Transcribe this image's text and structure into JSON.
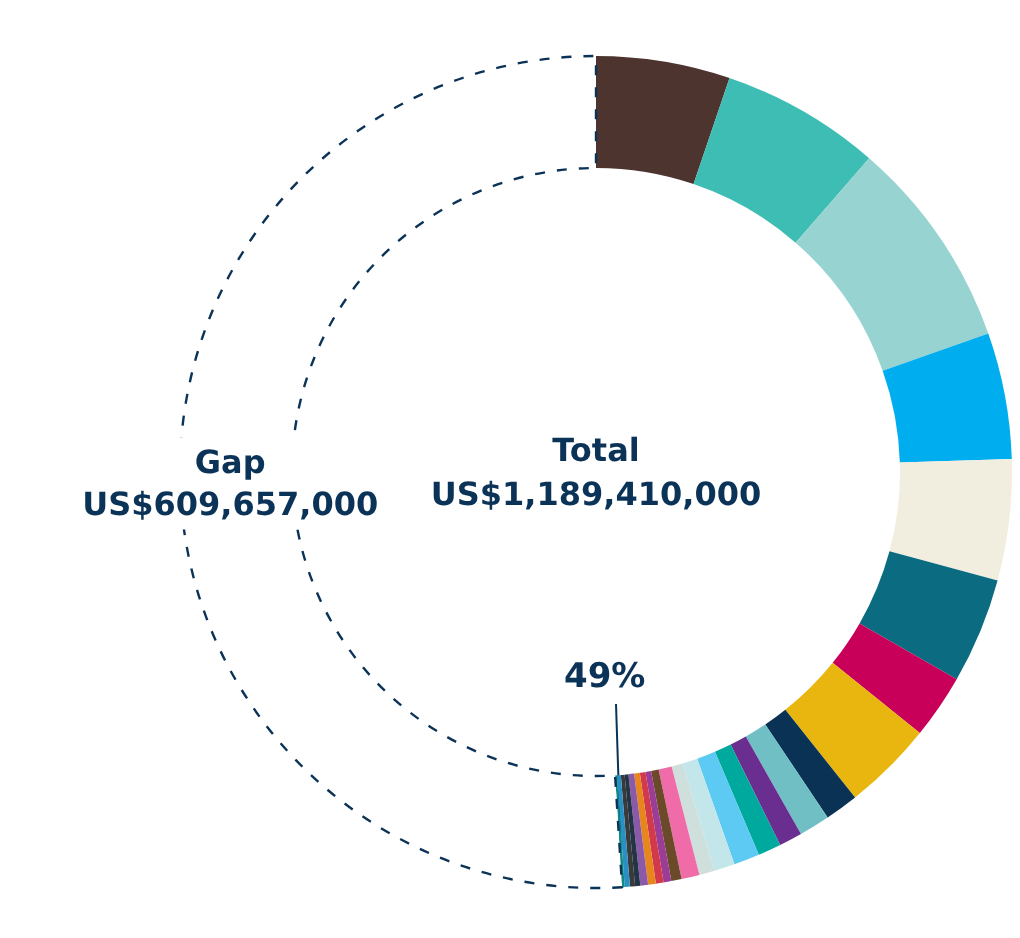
{
  "chart_data": {
    "type": "donut",
    "categories": [
      null,
      null,
      null,
      null,
      null,
      null,
      null,
      null,
      null,
      null,
      null,
      null,
      null,
      null,
      null,
      null,
      null,
      null,
      null,
      null,
      null,
      null,
      null,
      null,
      null,
      "Gap"
    ],
    "values": [
      5.2,
      6.2,
      8.2,
      4.9,
      4.7,
      4.1,
      2.5,
      3.5,
      1.3,
      1.2,
      0.9,
      0.9,
      1.0,
      0.8,
      0.6,
      0.7,
      0.4,
      0.3,
      0.3,
      0.3,
      0.3,
      0.2,
      0.2,
      0.2,
      0.1,
      51
    ],
    "colors": [
      "#4e342e",
      "#3dbdb4",
      "#97d3d1",
      "#00aeef",
      "#f1eedf",
      "#0b6b80",
      "#c8005a",
      "#e8b60e",
      "#0a3254",
      "#6fbfc4",
      "#6a2e91",
      "#00a99d",
      "#5ccaf3",
      "#c2e6ea",
      "#cfe0dc",
      "#f06ca8",
      "#6b4a2a",
      "#9b3c96",
      "#d23a4c",
      "#e8861e",
      "#8a5aa8",
      "#243447",
      "#3a3a3a",
      "#2990c6",
      "#0f8a80",
      "#0b3358"
    ],
    "value_labels": [
      null,
      null,
      null,
      null,
      null,
      null,
      null,
      null,
      null,
      null,
      null,
      null,
      null,
      null,
      null,
      null,
      null,
      null,
      null,
      null,
      null,
      null,
      null,
      null,
      null,
      "US$609,657,000"
    ],
    "annotations": [
      "Total\nUS$1,189,410,000",
      "49%"
    ],
    "legend": false
  }
}
